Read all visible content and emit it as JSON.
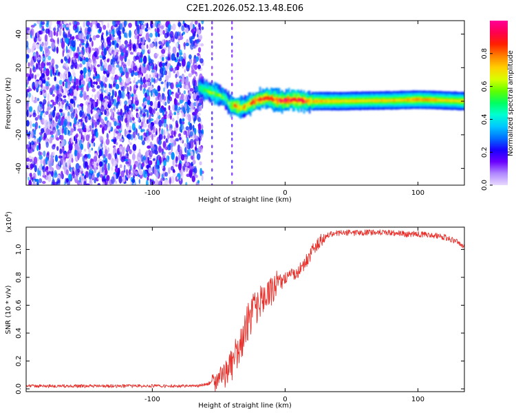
{
  "chart_data": [
    {
      "type": "heatmap",
      "title": "C2E1.2026.052.13.48.E06",
      "xlabel": "Height of straight line (km)",
      "ylabel": "Frequency (Hz)",
      "xlim": [
        -195,
        135
      ],
      "ylim": [
        -50,
        48
      ],
      "xticks": [
        -100,
        0,
        100
      ],
      "yticks": [
        -40,
        -20,
        0,
        20,
        40
      ],
      "colorbar": {
        "label": "Normalized spectral amplitude",
        "range": [
          0.0,
          1.0
        ],
        "ticks": [
          "0.0",
          "0.2",
          "0.4",
          "0.6",
          "0.8"
        ],
        "colors": [
          "#e9d9ff",
          "#b088ff",
          "#6a00ff",
          "#1a00ff",
          "#0070ff",
          "#00c8ff",
          "#00ffd0",
          "#00ff60",
          "#60ff00",
          "#d8ff00",
          "#ffd000",
          "#ff8000",
          "#ff2000",
          "#ff0050",
          "#ff0098"
        ]
      },
      "noise_region_end_x": -62,
      "ridge": {
        "x": [
          -65,
          -58,
          -52,
          -46,
          -42,
          -38,
          -34,
          -30,
          -26,
          -20,
          -14,
          -8,
          -2,
          4,
          10,
          16,
          20,
          40,
          60,
          80,
          100,
          120,
          135
        ],
        "freq": [
          8,
          6,
          4,
          2,
          -2,
          -3,
          -4,
          -3,
          -1,
          1,
          2,
          1,
          0,
          1,
          0.5,
          0,
          0,
          0,
          0.3,
          0.5,
          1,
          0.5,
          0
        ],
        "amp": [
          0.45,
          0.5,
          0.55,
          0.45,
          0.5,
          0.75,
          0.6,
          0.7,
          0.85,
          0.9,
          0.9,
          0.85,
          0.95,
          0.9,
          0.95,
          0.85,
          0.75,
          0.7,
          0.7,
          0.7,
          0.75,
          0.7,
          0.7
        ]
      }
    },
    {
      "type": "line",
      "xlabel": "Height of straight line (km)",
      "ylabel": "SNR (10 * v/v)",
      "yscale_label": "(x10",
      "yscale_exp": "4",
      "ylabel_scale": "(x10^4)",
      "xlim": [
        -195,
        135
      ],
      "ylim": [
        -0.02,
        1.16
      ],
      "xticks": [
        -100,
        0,
        100
      ],
      "yticks": [
        "0.0",
        "0.2",
        "0.4",
        "0.6",
        "0.8",
        "1.0"
      ],
      "line_color": "#e8302b",
      "series": [
        {
          "name": "SNR",
          "x": [
            -195,
            -150,
            -100,
            -70,
            -60,
            -50,
            -45,
            -40,
            -35,
            -30,
            -25,
            -20,
            -15,
            -10,
            -5,
            0,
            5,
            10,
            15,
            20,
            25,
            30,
            35,
            40,
            45,
            50,
            60,
            70,
            80,
            90,
            100,
            110,
            120,
            125,
            130,
            135
          ],
          "y": [
            0.02,
            0.02,
            0.02,
            0.02,
            0.03,
            0.07,
            0.12,
            0.18,
            0.28,
            0.42,
            0.55,
            0.62,
            0.66,
            0.7,
            0.75,
            0.8,
            0.82,
            0.85,
            0.9,
            0.98,
            1.05,
            1.09,
            1.11,
            1.12,
            1.12,
            1.12,
            1.12,
            1.12,
            1.12,
            1.11,
            1.11,
            1.1,
            1.09,
            1.07,
            1.05,
            1.02
          ]
        }
      ]
    }
  ]
}
